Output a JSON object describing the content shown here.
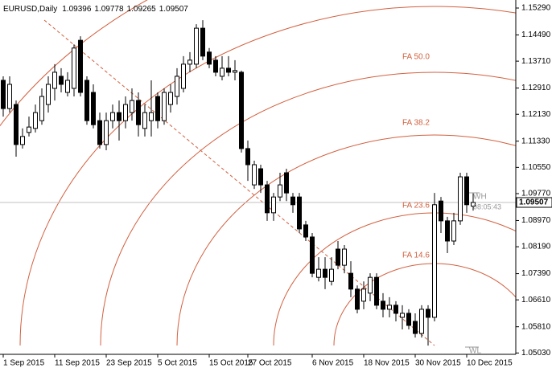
{
  "chart_data": {
    "type": "candlestick",
    "title": "EURUSD,Daily",
    "categories": [
      "1 Sep 2015",
      null,
      null,
      null,
      null,
      null,
      null,
      null,
      "11 Sep 2015",
      null,
      null,
      null,
      null,
      null,
      null,
      null,
      "23 Sep 2015",
      null,
      null,
      null,
      null,
      null,
      null,
      null,
      "5 Oct 2015",
      null,
      null,
      null,
      null,
      null,
      null,
      null,
      "15 Oct 2015",
      null,
      null,
      null,
      null,
      null,
      "27 Oct 2015",
      null,
      null,
      null,
      null,
      null,
      null,
      null,
      null,
      null,
      "6 Nov 2015",
      null,
      null,
      null,
      null,
      null,
      null,
      null,
      "18 Nov 2015",
      null,
      null,
      null,
      null,
      null,
      null,
      null,
      "30 Nov 2015",
      null,
      null,
      null,
      null,
      null,
      null,
      null,
      "10 Dec 2015",
      null
    ],
    "open": [
      1.1314,
      1.123,
      1.1242,
      1.1123,
      1.1159,
      1.1171,
      1.1194,
      1.1242,
      1.129,
      1.1326,
      1.1278,
      1.129,
      1.1433,
      1.1314,
      1.1278,
      1.1194,
      1.1123,
      1.1194,
      1.1218,
      1.1194,
      1.1218,
      1.1254,
      1.1171,
      1.1194,
      1.1266,
      1.1194,
      1.1242,
      1.1266,
      1.129,
      1.1362,
      1.1362,
      1.1469,
      1.1398,
      1.1374,
      1.1326,
      1.135,
      1.1338,
      1.1338,
      1.1111,
      1.1003,
      1.1051,
      1.1003,
      1.092,
      1.0967,
      1.1039,
      1.0967,
      1.0967,
      1.0884,
      1.0848,
      1.0728,
      1.0752,
      1.0716,
      1.0812,
      1.0764,
      1.074,
      1.0693,
      1.0657,
      1.0681,
      1.0728,
      1.0657,
      1.0633,
      1.0645,
      1.0609,
      1.0621,
      1.0597,
      1.0561,
      1.0633,
      1.0609,
      1.0955,
      1.0896,
      1.0836,
      1.0896,
      1.1027,
      1.09396
    ],
    "high": [
      1.1326,
      1.1326,
      1.1254,
      1.1171,
      1.1206,
      1.1242,
      1.129,
      1.1326,
      1.1362,
      1.135,
      1.1338,
      1.1421,
      1.1445,
      1.1326,
      1.1302,
      1.1218,
      1.1218,
      1.1242,
      1.1254,
      1.1266,
      1.129,
      1.1278,
      1.1242,
      1.1314,
      1.1278,
      1.129,
      1.1302,
      1.135,
      1.1386,
      1.1398,
      1.1481,
      1.1493,
      1.141,
      1.1386,
      1.1386,
      1.1386,
      1.1374,
      1.1343,
      1.1135,
      1.1075,
      1.1063,
      1.1015,
      1.0979,
      1.1039,
      1.1051,
      1.0979,
      1.0979,
      1.0896,
      1.086,
      1.0788,
      1.0788,
      1.0788,
      1.0836,
      1.0824,
      1.0776,
      1.0704,
      1.0716,
      1.074,
      1.074,
      1.0681,
      1.0669,
      1.0657,
      1.0645,
      1.0633,
      1.0621,
      1.0645,
      1.0645,
      1.0979,
      1.0967,
      1.0908,
      1.092,
      1.1039,
      1.1039,
      1.09778
    ],
    "low": [
      1.1206,
      1.1218,
      1.1087,
      1.1111,
      1.1147,
      1.1159,
      1.1182,
      1.1218,
      1.1254,
      1.1278,
      1.1266,
      1.1266,
      1.1266,
      1.1182,
      1.1171,
      1.1111,
      1.1106,
      1.1171,
      1.1135,
      1.1171,
      1.1194,
      1.1147,
      1.1147,
      1.1147,
      1.1171,
      1.1182,
      1.1218,
      1.1242,
      1.1278,
      1.1338,
      1.135,
      1.1374,
      1.135,
      1.1326,
      1.1314,
      1.1326,
      1.1314,
      1.1099,
      1.1015,
      1.0991,
      1.0979,
      1.0896,
      1.0896,
      1.0955,
      1.0955,
      1.092,
      1.086,
      1.0836,
      1.0728,
      1.0716,
      1.0693,
      1.0704,
      1.0752,
      1.074,
      1.0669,
      1.0621,
      1.0633,
      1.0657,
      1.0633,
      1.0609,
      1.0609,
      1.0597,
      1.0573,
      1.0573,
      1.0549,
      1.0549,
      1.0525,
      1.0597,
      1.086,
      1.08,
      1.0824,
      1.0884,
      1.092,
      1.09265
    ],
    "close": [
      1.123,
      1.1302,
      1.1123,
      1.1147,
      1.1175,
      1.1218,
      1.1266,
      1.1302,
      1.1338,
      1.1302,
      1.1314,
      1.141,
      1.1278,
      1.1194,
      1.1182,
      1.1123,
      1.1194,
      1.1218,
      1.1194,
      1.1242,
      1.1254,
      1.1182,
      1.1218,
      1.1218,
      1.1194,
      1.1278,
      1.1278,
      1.1326,
      1.1362,
      1.1374,
      1.1469,
      1.1386,
      1.1362,
      1.1338,
      1.135,
      1.1338,
      1.1343,
      1.1111,
      1.1063,
      1.1063,
      1.1003,
      1.092,
      1.0967,
      1.1003,
      1.0979,
      1.0944,
      1.0872,
      1.0848,
      1.074,
      1.0752,
      1.0728,
      1.0752,
      1.0764,
      1.0812,
      1.0693,
      1.0633,
      1.0693,
      1.0728,
      1.0645,
      1.0633,
      1.0645,
      1.0621,
      1.0621,
      1.0585,
      1.0561,
      1.0633,
      1.0609,
      1.0944,
      1.0896,
      1.0836,
      1.0896,
      1.1027,
      1.0944,
      1.09507
    ],
    "up_color": "#ffffff",
    "down_color": "#000000",
    "ylim": [
      1.0499,
      1.15529
    ],
    "yticks": [
      {
        "value": 1.1529,
        "label": "1.15290"
      },
      {
        "value": 1.1449,
        "label": "1.14490"
      },
      {
        "value": 1.1371,
        "label": "1.13710"
      },
      {
        "value": 1.1291,
        "label": "1.12910"
      },
      {
        "value": 1.1213,
        "label": "1.12130"
      },
      {
        "value": 1.1133,
        "label": "1.11330"
      },
      {
        "value": 1.1055,
        "label": "1.10550"
      },
      {
        "value": 1.0977,
        "label": "1.09770"
      },
      {
        "value": 1.0897,
        "label": "1.08970"
      },
      {
        "value": 1.0819,
        "label": "1.08190"
      },
      {
        "value": 1.0739,
        "label": "1.07390"
      },
      {
        "value": 1.0661,
        "label": "1.06610"
      },
      {
        "value": 1.0581,
        "label": "1.05810"
      },
      {
        "value": 1.0503,
        "label": "1.05030"
      }
    ],
    "grid": false,
    "arc_color": "#d2603f",
    "annotations": {
      "fibo_levels": [
        "FA 50.0",
        "FA 38.2",
        "FA 23.6",
        "FA 14.6"
      ],
      "week_high": "WH",
      "week_low": "WL",
      "countdown": "08:05:43"
    }
  }
}
